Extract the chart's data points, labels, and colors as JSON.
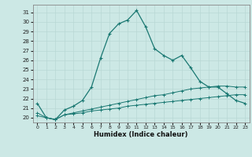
{
  "xlabel": "Humidex (Indice chaleur)",
  "background_color": "#cce8e5",
  "line_color": "#1a7872",
  "grid_color": "#b8d8d4",
  "xlim": [
    -0.5,
    23.5
  ],
  "ylim": [
    19.5,
    31.8
  ],
  "xticks": [
    0,
    1,
    2,
    3,
    4,
    5,
    6,
    7,
    8,
    9,
    10,
    11,
    12,
    13,
    14,
    15,
    16,
    17,
    18,
    19,
    20,
    21,
    22,
    23
  ],
  "yticks": [
    20,
    21,
    22,
    23,
    24,
    25,
    26,
    27,
    28,
    29,
    30,
    31
  ],
  "series1_x": [
    0,
    1,
    2,
    3,
    4,
    5,
    6,
    7,
    8,
    9,
    10,
    11,
    12,
    13,
    14,
    15,
    16,
    17,
    18,
    19,
    20,
    21,
    22,
    23
  ],
  "series1_y": [
    21.5,
    20.0,
    19.8,
    20.8,
    21.2,
    21.8,
    23.2,
    26.2,
    28.8,
    29.8,
    30.2,
    31.2,
    29.5,
    27.2,
    26.5,
    26.0,
    26.5,
    25.2,
    23.8,
    23.2,
    23.2,
    22.5,
    21.8,
    21.5
  ],
  "series2_x": [
    0,
    1,
    2,
    3,
    4,
    5,
    6,
    7,
    8,
    9,
    10,
    11,
    12,
    13,
    14,
    15,
    16,
    17,
    18,
    19,
    20,
    21,
    22,
    23
  ],
  "series2_y": [
    20.2,
    20.0,
    19.8,
    20.3,
    20.4,
    20.5,
    20.7,
    20.8,
    20.9,
    21.0,
    21.2,
    21.3,
    21.4,
    21.5,
    21.6,
    21.7,
    21.8,
    21.9,
    22.0,
    22.1,
    22.2,
    22.3,
    22.4,
    22.4
  ],
  "series3_x": [
    0,
    1,
    2,
    3,
    4,
    5,
    6,
    7,
    8,
    9,
    10,
    11,
    12,
    13,
    14,
    15,
    16,
    17,
    18,
    19,
    20,
    21,
    22,
    23
  ],
  "series3_y": [
    20.5,
    20.0,
    19.8,
    20.3,
    20.5,
    20.7,
    20.9,
    21.1,
    21.3,
    21.5,
    21.7,
    21.9,
    22.1,
    22.3,
    22.4,
    22.6,
    22.8,
    23.0,
    23.1,
    23.2,
    23.3,
    23.3,
    23.2,
    23.2
  ]
}
